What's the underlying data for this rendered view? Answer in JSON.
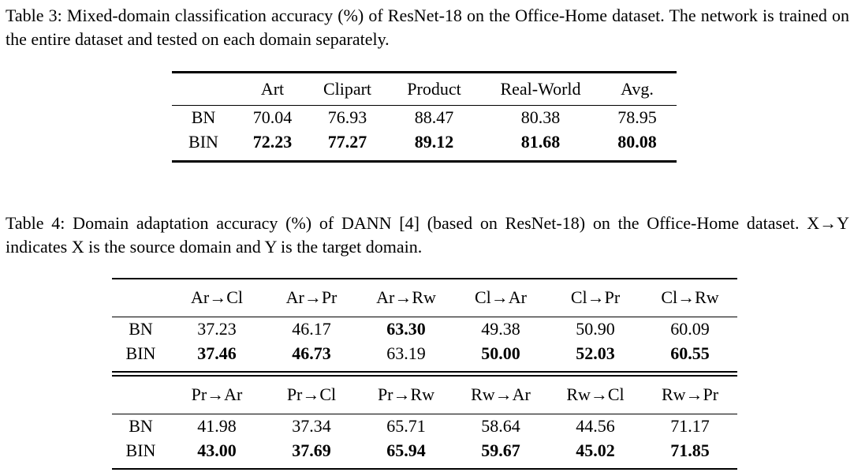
{
  "page": {
    "background": "#ffffff",
    "text_color": "#000000"
  },
  "table3": {
    "caption": "Table 3: Mixed-domain classification accuracy (%) of ResNet-18 on the Office-Home dataset. The network is trained on the entire dataset and tested on each domain separately.",
    "columns": [
      "Art",
      "Clipart",
      "Product",
      "Real-World",
      "Avg."
    ],
    "rows": [
      {
        "label": "BN",
        "values": [
          "70.04",
          "76.93",
          "88.47",
          "80.38",
          "78.95"
        ],
        "bold": [
          false,
          false,
          false,
          false,
          false
        ]
      },
      {
        "label": "BIN",
        "values": [
          "72.23",
          "77.27",
          "89.12",
          "81.68",
          "80.08"
        ],
        "bold": [
          true,
          true,
          true,
          true,
          true
        ]
      }
    ]
  },
  "table4": {
    "caption": "Table 4: Domain adaptation accuracy (%) of DANN [4] (based on ResNet-18) on the Office-Home dataset. X→Y indicates X is the source domain and Y is the target domain.",
    "blocks": [
      {
        "columns": [
          "Ar→Cl",
          "Ar→Pr",
          "Ar→Rw",
          "Cl→Ar",
          "Cl→Pr",
          "Cl→Rw"
        ],
        "rows": [
          {
            "label": "BN",
            "values": [
              "37.23",
              "46.17",
              "63.30",
              "49.38",
              "50.90",
              "60.09"
            ],
            "bold": [
              false,
              false,
              true,
              false,
              false,
              false
            ]
          },
          {
            "label": "BIN",
            "values": [
              "37.46",
              "46.73",
              "63.19",
              "50.00",
              "52.03",
              "60.55"
            ],
            "bold": [
              true,
              true,
              false,
              true,
              true,
              true
            ]
          }
        ]
      },
      {
        "columns": [
          "Pr→Ar",
          "Pr→Cl",
          "Pr→Rw",
          "Rw→Ar",
          "Rw→Cl",
          "Rw→Pr"
        ],
        "rows": [
          {
            "label": "BN",
            "values": [
              "41.98",
              "37.34",
              "65.71",
              "58.64",
              "44.56",
              "71.17"
            ],
            "bold": [
              false,
              false,
              false,
              false,
              false,
              false
            ]
          },
          {
            "label": "BIN",
            "values": [
              "43.00",
              "37.69",
              "65.94",
              "59.67",
              "45.02",
              "71.85"
            ],
            "bold": [
              true,
              true,
              true,
              true,
              true,
              true
            ]
          }
        ]
      }
    ]
  }
}
